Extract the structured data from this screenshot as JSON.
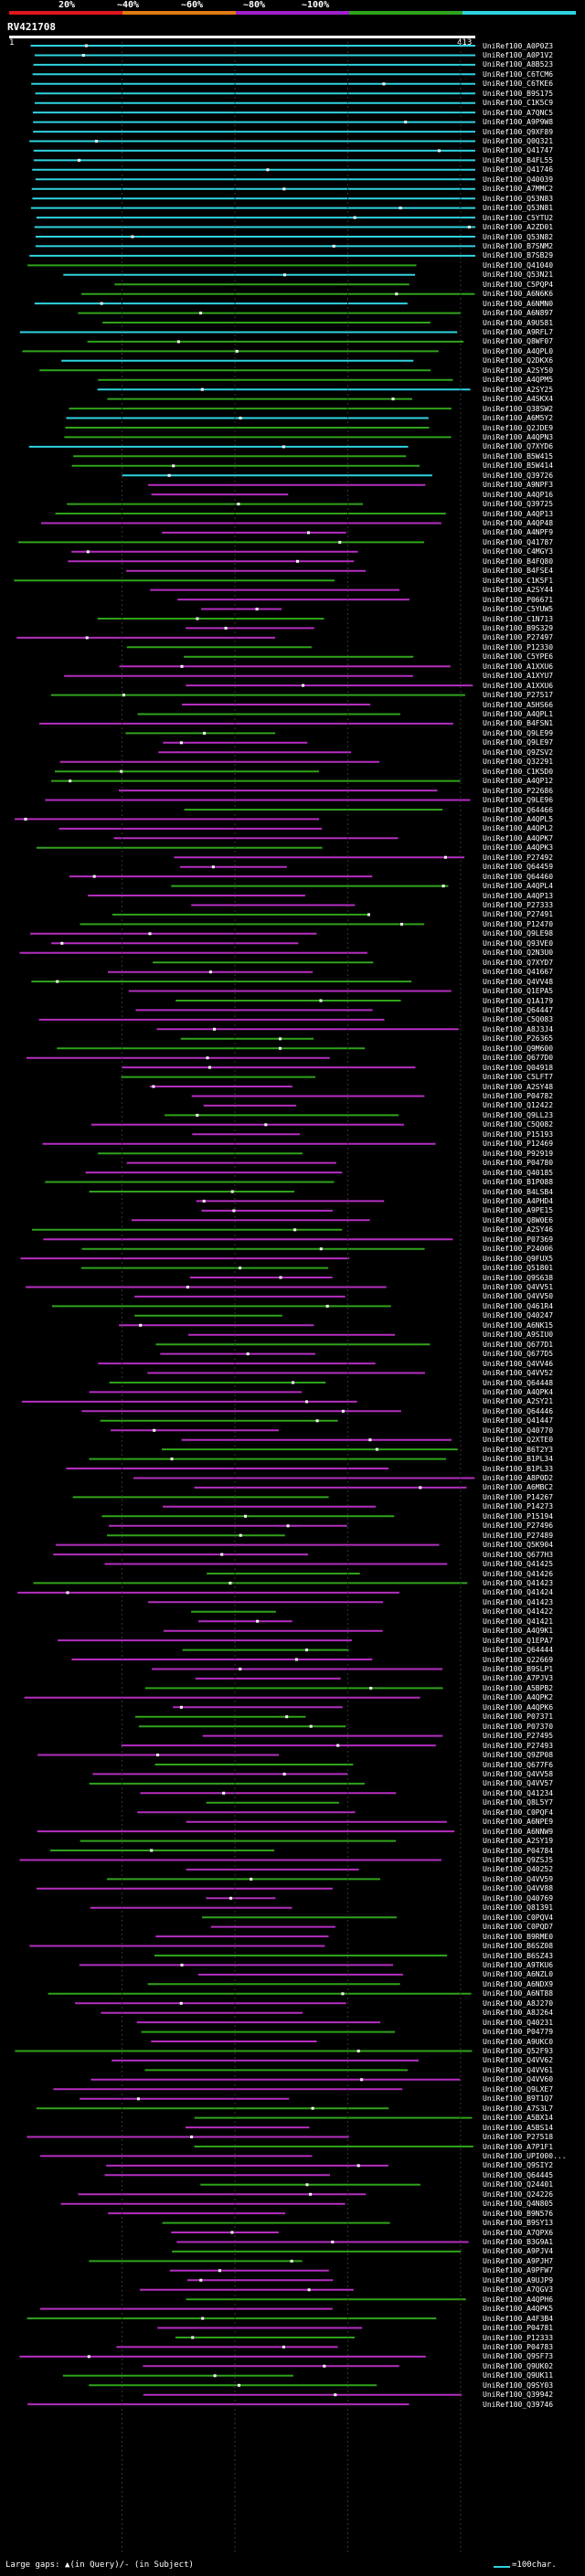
{
  "legend": {
    "labels": [
      "20%",
      "~40%",
      "~60%",
      "~80%",
      "~100%"
    ],
    "colors": [
      "#e0161e",
      "#e07a12",
      "#a020c8",
      "#2fa31a",
      "#2fd3e0"
    ]
  },
  "query": {
    "id": "RV421708",
    "start": "1",
    "end": "413"
  },
  "colors": {
    "cyan": "#2fd3e0",
    "green": "#2fa31a",
    "magenta": "#b52ec0",
    "gap": "#ffffff",
    "axis": "#ffffff"
  },
  "hits": [
    "UniRef100_A0P0Z3",
    "UniRef100_A0P1V2",
    "UniRef100_A8B523",
    "UniRef100_C6TCM6",
    "UniRef100_C6TKE6",
    "UniRef100_B9S175",
    "UniRef100_C1K5C9",
    "UniRef100_A7QNC5",
    "UniRef100_A9P9W8",
    "UniRef100_Q9XF89",
    "UniRef100_Q0Q321",
    "UniRef100_Q41747",
    "UniRef100_B4FL55",
    "UniRef100_Q41746",
    "UniRef100_Q40039",
    "UniRef100_A7MMC2",
    "UniRef100_Q53N83",
    "UniRef100_Q53N81",
    "UniRef100_C5YTU2",
    "UniRef100_A2ZD01",
    "UniRef100_Q53N82",
    "UniRef100_B7SNM2",
    "UniRef100_B7SB29",
    "UniRef100_Q41040",
    "UniRef100_Q53N21",
    "UniRef100_C5PQP4",
    "UniRef100_A6N6K6",
    "UniRef100_A6NMN0",
    "UniRef100_A6N897",
    "UniRef100_A9U581",
    "UniRef100_A9RFL7",
    "UniRef100_Q8WF07",
    "UniRef100_A4QPL0",
    "UniRef100_Q2DKX6",
    "UniRef100_A2SY50",
    "UniRef100_A4QPM5",
    "UniRef100_A2SY25",
    "UniRef100_A4SKX4",
    "UniRef100_Q38SW2",
    "UniRef100_A6M5Y2",
    "UniRef100_Q2JDE9",
    "UniRef100_A4QPN3",
    "UniRef100_Q7XYD6",
    "UniRef100_B5W415",
    "UniRef100_B5W414",
    "UniRef100_Q39726",
    "UniRef100_A9NPF3",
    "UniRef100_A4QP16",
    "UniRef100_Q39725",
    "UniRef100_A4QP13",
    "UniRef100_A4QP48",
    "UniRef100_A4NPF9",
    "UniRef100_Q41787",
    "UniRef100_C4MGY3",
    "UniRef100_B4FQ80",
    "UniRef100_B4FSE4",
    "UniRef100_C1K5F1",
    "UniRef100_A2SY44",
    "UniRef100_P06671",
    "UniRef100_C5YUW5",
    "UniRef100_C1N713",
    "UniRef100_B9S329",
    "UniRef100_P27497",
    "UniRef100_P12330",
    "UniRef100_C5YPE6",
    "UniRef100_A1XXU6",
    "UniRef100_A1XYU7",
    "UniRef100_A1XXU6",
    "UniRef100_P27517",
    "UniRef100_A5HS66",
    "UniRef100_A4QPL1",
    "UniRef100_B4FSN1",
    "UniRef100_Q9LE99",
    "UniRef100_Q9LE97",
    "UniRef100_Q9ZSV2",
    "UniRef100_Q32291",
    "UniRef100_C1K5D0",
    "UniRef100_A4QP12",
    "UniRef100_P22686",
    "UniRef100_Q9LE96",
    "UniRef100_Q64466",
    "UniRef100_A4QPL5",
    "UniRef100_A4QPL2",
    "UniRef100_A4QPK7",
    "UniRef100_A4QPK3",
    "UniRef100_P27492",
    "UniRef100_Q64459",
    "UniRef100_Q64460",
    "UniRef100_A4QPL4",
    "UniRef100_A4QP13",
    "UniRef100_P27333",
    "UniRef100_P27491",
    "UniRef100_P12470",
    "UniRef100_Q9LE98",
    "UniRef100_Q93VE0",
    "UniRef100_Q2N3U0",
    "UniRef100_Q7XYD7",
    "UniRef100_Q41667",
    "UniRef100_Q4VV48",
    "UniRef100_Q1EPA5",
    "UniRef100_Q1A179",
    "UniRef100_Q64447",
    "UniRef100_C5Q083",
    "UniRef100_A8J3J4",
    "UniRef100_P26365",
    "UniRef100_Q9M600",
    "UniRef100_Q677D0",
    "UniRef100_Q04918",
    "UniRef100_C5LFT7",
    "UniRef100_A2SY48",
    "UniRef100_P04782",
    "UniRef100_Q12422",
    "UniRef100_Q9LL23",
    "UniRef100_C5Q082",
    "UniRef100_P15193",
    "UniRef100_P12469",
    "UniRef100_P92919",
    "UniRef100_P04780",
    "UniRef100_Q40185",
    "UniRef100_B1P088",
    "UniRef100_B4LSB4",
    "UniRef100_A4PHD4",
    "UniRef100_A9PE15",
    "UniRef100_Q8W0E6",
    "UniRef100_A2SY46",
    "UniRef100_P07369",
    "UniRef100_P24006",
    "UniRef100_Q9FUX5",
    "UniRef100_Q51801",
    "UniRef100_Q9S638",
    "UniRef100_Q4VV51",
    "UniRef100_Q4VV50",
    "UniRef100_Q461R4",
    "UniRef100_Q40247",
    "UniRef100_A6NK15",
    "UniRef100_A9SIU0",
    "UniRef100_Q677D1",
    "UniRef100_Q677D5",
    "UniRef100_Q4VV46",
    "UniRef100_Q4VV52",
    "UniRef100_Q64448",
    "UniRef100_A4QPK4",
    "UniRef100_A2SY21",
    "UniRef100_Q64446",
    "UniRef100_Q41447",
    "UniRef100_Q40770",
    "UniRef100_Q2XTE0",
    "UniRef100_B6T2Y3",
    "UniRef100_B1PL34",
    "UniRef100_B1PL33",
    "UniRef100_A8P0D2",
    "UniRef100_A6MBC2",
    "UniRef100_P14267",
    "UniRef100_P14273",
    "UniRef100_P15194",
    "UniRef100_P27496",
    "UniRef100_P27489",
    "UniRef100_Q5K904",
    "UniRef100_Q677H3",
    "UniRef100_Q41425",
    "UniRef100_Q41426",
    "UniRef100_Q41423",
    "UniRef100_Q41424",
    "UniRef100_Q41423",
    "UniRef100_Q41422",
    "UniRef100_Q41421",
    "UniRef100_A4Q9K1",
    "UniRef100_Q1EPA7",
    "UniRef100_Q64444",
    "UniRef100_Q22669",
    "UniRef100_B9SLP1",
    "UniRef100_A7PJV3",
    "UniRef100_A5BPB2",
    "UniRef100_A4QPK2",
    "UniRef100_A4QPK6",
    "UniRef100_P07371",
    "UniRef100_P07370",
    "UniRef100_P27495",
    "UniRef100_P27493",
    "UniRef100_Q9ZP08",
    "UniRef100_Q677F6",
    "UniRef100_Q4VV58",
    "UniRef100_Q4VV57",
    "UniRef100_Q41234",
    "UniRef100_Q8L5Y7",
    "UniRef100_C0PQF4",
    "UniRef100_A6NPE9",
    "UniRef100_A6NNW9",
    "UniRef100_A2SY19",
    "UniRef100_P04784",
    "UniRef100_Q9ZSJ5",
    "UniRef100_Q40252",
    "UniRef100_Q4VV59",
    "UniRef100_Q4VV88",
    "UniRef100_Q40769",
    "UniRef100_Q81391",
    "UniRef100_C0PQV4",
    "UniRef100_C0PQD7",
    "UniRef100_B9RME0",
    "UniRef100_B6SZ08",
    "UniRef100_B6SZ43",
    "UniRef100_A9TKU6",
    "UniRef100_A6NZL0",
    "UniRef100_A6NDX9",
    "UniRef100_A6NT88",
    "UniRef100_A8J270",
    "UniRef100_A8J264",
    "UniRef100_Q40231",
    "UniRef100_P04779",
    "UniRef100_A9UKC0",
    "UniRef100_Q52F93",
    "UniRef100_Q4VV62",
    "UniRef100_Q4VV61",
    "UniRef100_Q4VV60",
    "UniRef100_Q9LXE7",
    "UniRef100_B9T1Q7",
    "UniRef100_A7S3L7",
    "UniRef100_A5BX14",
    "UniRef100_A5BS14",
    "UniRef100_P27518",
    "UniRef100_A7P1F1",
    "UniRef100_UPI000...",
    "UniRef100_Q9SIY2",
    "UniRef100_Q64445",
    "UniRef100_Q24401",
    "UniRef100_Q24226",
    "UniRef100_Q4N805",
    "UniRef100_B9N576",
    "UniRef100_B9SY13",
    "UniRef100_A7QPX6",
    "UniRef100_B3G9A1",
    "UniRef100_A9PJV4",
    "UniRef100_A9PJH7",
    "UniRef100_A9PFW7",
    "UniRef100_A9UJP9",
    "UniRef100_A7QGV3",
    "UniRef100_A4QPH6",
    "UniRef100_A4QPK5",
    "UniRef100_A4F3B4",
    "UniRef100_P04781",
    "UniRef100_P12333",
    "UniRef100_P04783",
    "UniRef100_Q9SF73",
    "UniRef100_Q9UK02",
    "UniRef100_Q9UK11",
    "UniRef100_Q9SY03",
    "UniRef100_Q39942",
    "UniRef100_Q39746"
  ],
  "footer": {
    "gap_legend": "Large gaps: ▲(in Query)/- (in Subject)",
    "scale_legend": "=100char."
  }
}
